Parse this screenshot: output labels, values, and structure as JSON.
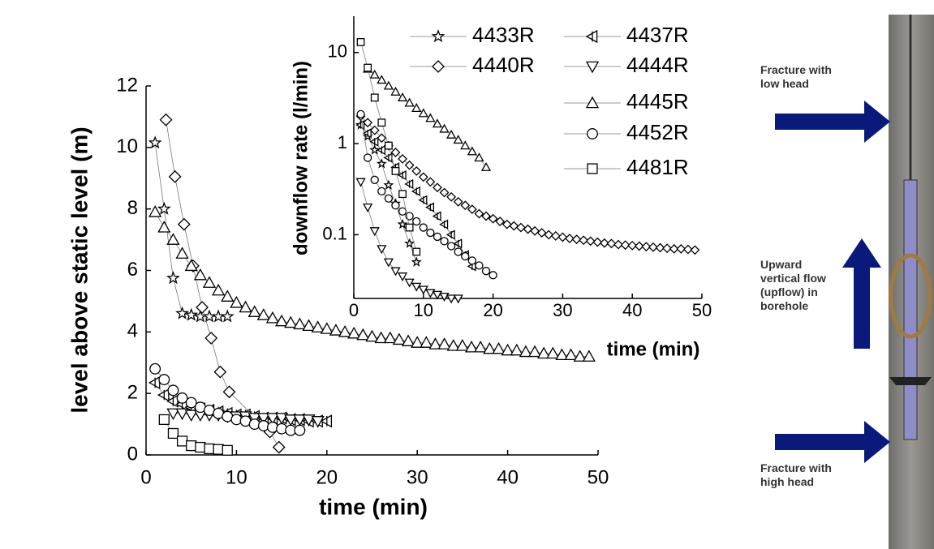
{
  "chart_data": [
    {
      "type": "scatter",
      "x_label": "time (min)",
      "y_label": "level above static level (m)",
      "xlim": [
        0,
        50
      ],
      "ylim": [
        0,
        12
      ],
      "xticks": [
        0,
        10,
        20,
        30,
        40,
        50
      ],
      "yticks": [
        0,
        2,
        4,
        6,
        8,
        10,
        12
      ],
      "series": [
        {
          "marker": "star",
          "color": "#000000",
          "x": [
            1,
            2,
            3,
            4,
            5,
            6,
            7,
            8,
            9
          ],
          "values": [
            10.15,
            8.0,
            5.75,
            4.6,
            4.55,
            4.5,
            4.5,
            4.5,
            4.5
          ]
        },
        {
          "marker": "tri-left-bar",
          "color": "#000000",
          "x": [
            1,
            2,
            3,
            4,
            5,
            6,
            7,
            8,
            9,
            10,
            11,
            12,
            13,
            14,
            15,
            16,
            17,
            18,
            19,
            20
          ],
          "values": [
            2.35,
            1.95,
            1.75,
            1.65,
            1.55,
            1.5,
            1.45,
            1.4,
            1.35,
            1.3,
            1.3,
            1.25,
            1.2,
            1.2,
            1.2,
            1.15,
            1.15,
            1.1,
            1.1,
            1.1
          ]
        },
        {
          "marker": "diamond",
          "color": "#000000",
          "x": [
            2.2,
            3.2,
            4.2,
            5.2,
            6.2,
            7.2,
            8.2,
            9.2,
            13.7,
            14.7
          ],
          "values": [
            10.9,
            9.05,
            7.5,
            6.15,
            4.8,
            3.8,
            2.7,
            2.05,
            0.75,
            0.25
          ]
        },
        {
          "marker": "tri-down",
          "color": "#000000",
          "x": [
            3,
            4,
            5,
            6,
            7,
            8,
            9,
            10,
            11,
            12,
            13,
            14,
            15,
            16,
            17,
            18,
            19
          ],
          "values": [
            1.35,
            1.35,
            1.3,
            1.3,
            1.3,
            1.3,
            1.25,
            1.25,
            1.25,
            1.2,
            1.2,
            1.2,
            1.2,
            1.15,
            1.15,
            1.15,
            1.1
          ]
        },
        {
          "marker": "tri-up",
          "color": "#000000",
          "x": [
            1,
            2,
            3,
            4,
            5,
            6,
            7,
            8,
            9,
            10,
            11,
            12,
            13,
            14,
            15,
            16,
            17,
            18,
            19,
            20,
            21,
            22,
            23,
            24,
            25,
            26,
            27,
            28,
            29,
            30,
            31,
            32,
            33,
            34,
            35,
            36,
            37,
            38,
            39,
            40,
            41,
            42,
            43,
            44,
            45,
            46,
            47,
            48,
            49
          ],
          "values": [
            7.9,
            7.4,
            7.0,
            6.55,
            6.15,
            5.85,
            5.6,
            5.35,
            5.15,
            4.95,
            4.8,
            4.65,
            4.55,
            4.45,
            4.35,
            4.3,
            4.25,
            4.2,
            4.15,
            4.1,
            4.05,
            4.0,
            3.95,
            3.9,
            3.85,
            3.8,
            3.8,
            3.75,
            3.7,
            3.65,
            3.65,
            3.6,
            3.6,
            3.55,
            3.55,
            3.5,
            3.5,
            3.45,
            3.45,
            3.4,
            3.4,
            3.35,
            3.35,
            3.3,
            3.3,
            3.25,
            3.25,
            3.2,
            3.2
          ]
        },
        {
          "marker": "circle",
          "color": "#000000",
          "x": [
            1,
            2,
            3,
            4,
            5,
            6,
            7,
            8,
            9,
            10,
            11,
            12,
            13,
            14,
            15,
            16,
            17
          ],
          "values": [
            2.8,
            2.45,
            2.1,
            1.85,
            1.7,
            1.55,
            1.45,
            1.35,
            1.25,
            1.15,
            1.1,
            1.0,
            0.95,
            0.9,
            0.85,
            0.8,
            0.8
          ]
        },
        {
          "marker": "square",
          "color": "#000000",
          "x": [
            2,
            3,
            4,
            5,
            6,
            7,
            8,
            9
          ],
          "values": [
            1.15,
            0.7,
            0.45,
            0.3,
            0.25,
            0.2,
            0.18,
            0.15
          ]
        }
      ]
    },
    {
      "type": "scatter",
      "x_label": "time (min)",
      "y_label": "downflow rate (l/min)",
      "log_y": true,
      "legend": "upper-right",
      "xlim": [
        0,
        50
      ],
      "ylim": [
        0.02,
        25
      ],
      "xticks": [
        0,
        10,
        20,
        30,
        40,
        50
      ],
      "yticks": [
        0.1,
        1,
        10
      ],
      "series": [
        {
          "name": "4433R",
          "marker": "star",
          "color": "#000000",
          "x": [
            1,
            2,
            3,
            4,
            5,
            6,
            7,
            8,
            9
          ],
          "values": [
            1.6,
            1.2,
            0.85,
            0.6,
            0.35,
            0.22,
            0.13,
            0.08,
            0.05
          ]
        },
        {
          "name": "4437R",
          "marker": "tri-left-bar",
          "color": "#000000",
          "x": [
            1,
            2,
            3,
            4,
            5,
            6,
            7,
            8,
            9,
            10,
            11,
            12,
            13,
            14,
            15,
            16,
            17
          ],
          "values": [
            1.6,
            1.3,
            1.05,
            0.85,
            0.7,
            0.55,
            0.45,
            0.36,
            0.3,
            0.24,
            0.2,
            0.16,
            0.13,
            0.1,
            0.08,
            0.06,
            0.045
          ]
        },
        {
          "name": "4440R",
          "marker": "diamond",
          "color": "#000000",
          "x": [
            1,
            2,
            3,
            4,
            5,
            6,
            7,
            8,
            9,
            10,
            11,
            12,
            13,
            14,
            15,
            16,
            17,
            18,
            19,
            20,
            21,
            22,
            23,
            24,
            25,
            26,
            27,
            28,
            29,
            30,
            31,
            32,
            33,
            34,
            35,
            36,
            37,
            38,
            39,
            40,
            41,
            42,
            43,
            44,
            45,
            46,
            47,
            48,
            49
          ],
          "values": [
            2.0,
            1.7,
            1.4,
            1.15,
            0.95,
            0.8,
            0.68,
            0.58,
            0.5,
            0.43,
            0.38,
            0.33,
            0.29,
            0.26,
            0.23,
            0.21,
            0.19,
            0.17,
            0.16,
            0.15,
            0.14,
            0.13,
            0.125,
            0.12,
            0.115,
            0.11,
            0.105,
            0.1,
            0.097,
            0.094,
            0.091,
            0.089,
            0.087,
            0.085,
            0.083,
            0.081,
            0.08,
            0.078,
            0.077,
            0.076,
            0.075,
            0.074,
            0.073,
            0.072,
            0.071,
            0.07,
            0.07,
            0.069,
            0.068
          ]
        },
        {
          "name": "4444R",
          "marker": "tri-down",
          "color": "#000000",
          "x": [
            1,
            2,
            3,
            4,
            5,
            6,
            7,
            8,
            9,
            10,
            11,
            12,
            13,
            14,
            15
          ],
          "values": [
            0.38,
            0.2,
            0.11,
            0.07,
            0.05,
            0.04,
            0.035,
            0.03,
            0.027,
            0.025,
            0.023,
            0.022,
            0.021,
            0.02,
            0.02
          ]
        },
        {
          "name": "4445R",
          "marker": "tri-up",
          "color": "#000000",
          "x": [
            2,
            3,
            4,
            5,
            6,
            7,
            8,
            9,
            10,
            11,
            12,
            13,
            14,
            15,
            16,
            17,
            18,
            19
          ],
          "values": [
            6.6,
            5.7,
            5.0,
            4.3,
            3.7,
            3.2,
            2.8,
            2.45,
            2.15,
            1.9,
            1.65,
            1.45,
            1.25,
            1.1,
            0.95,
            0.82,
            0.7,
            0.55
          ]
        },
        {
          "name": "4452R",
          "marker": "circle",
          "color": "#000000",
          "x": [
            1,
            2,
            3,
            4,
            5,
            6,
            7,
            8,
            9,
            10,
            11,
            12,
            13,
            14,
            15,
            16,
            17,
            18,
            19,
            20
          ],
          "values": [
            2.1,
            0.7,
            0.4,
            0.3,
            0.25,
            0.21,
            0.18,
            0.16,
            0.14,
            0.12,
            0.105,
            0.095,
            0.085,
            0.075,
            0.065,
            0.058,
            0.052,
            0.046,
            0.04,
            0.036
          ]
        },
        {
          "name": "4481R",
          "marker": "square",
          "color": "#000000",
          "x": [
            1,
            2,
            3,
            4,
            5,
            6,
            7,
            8,
            9
          ],
          "values": [
            13,
            6.8,
            3.2,
            1.7,
            0.95,
            0.5,
            0.28,
            0.12,
            0.065
          ]
        }
      ]
    }
  ],
  "diagram": {
    "labels": [
      {
        "lines": [
          "Fracture with",
          "low head"
        ]
      },
      {
        "lines": [
          "Upward",
          "vertical flow",
          "(upflow) in",
          "borehole"
        ]
      },
      {
        "lines": [
          "Fracture with",
          "high head"
        ]
      }
    ]
  }
}
